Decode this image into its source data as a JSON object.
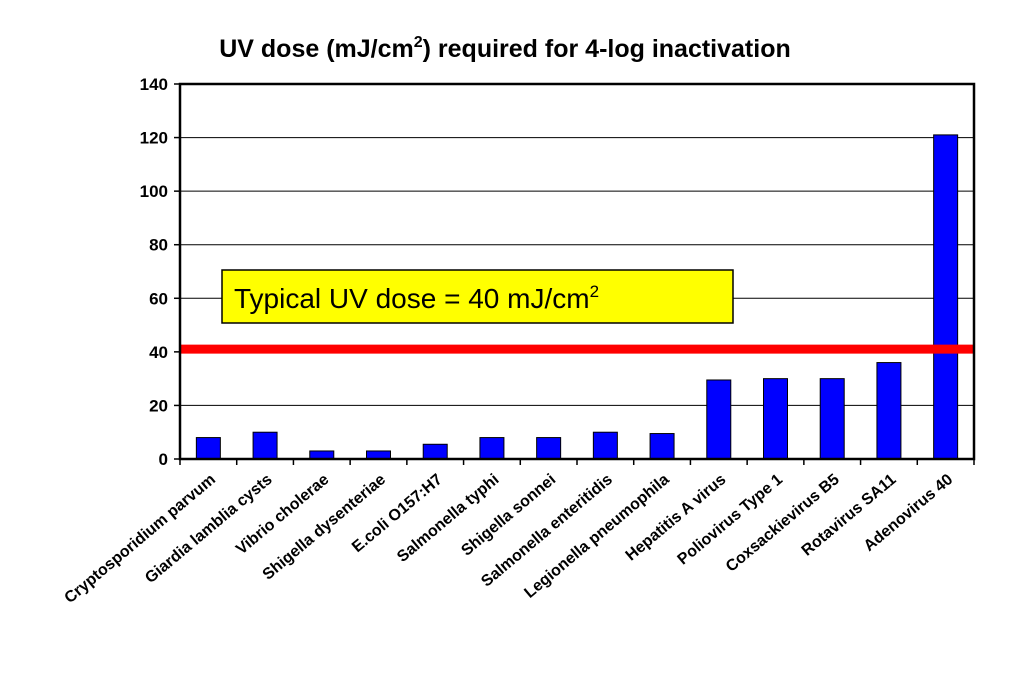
{
  "chart_data": {
    "type": "bar",
    "title": {
      "prefix": "UV dose (mJ/cm",
      "superscript": "2",
      "suffix": ") required for 4-log inactivation"
    },
    "categories": [
      "Cryptosporidium parvum",
      "Giardia lamblia cysts",
      "Vibrio cholerae",
      "Shigella dysenteriae",
      "E.coli O157:H7",
      "Salmonella typhi",
      "Shigella sonnei",
      "Salmonella enteritidis",
      "Legionella pneumophila",
      "Hepatitis A virus",
      "Poliovirus Type 1",
      "Coxsackievirus B5",
      "Rotavirus SA11",
      "Adenovirus 40"
    ],
    "values": [
      8,
      10,
      3,
      3,
      5.5,
      8,
      8,
      10,
      9.5,
      29.5,
      30,
      30,
      36,
      121
    ],
    "ylim": [
      0,
      140
    ],
    "yticks": [
      0,
      20,
      40,
      60,
      80,
      100,
      120,
      140
    ],
    "xlabel": "",
    "ylabel": "",
    "grid": "horizontal",
    "reference_line": {
      "value": 41,
      "color": "#ff0000"
    },
    "annotation": {
      "prefix": "Typical UV dose = 40 mJ/cm",
      "superscript": "2",
      "background": "#ffff00"
    },
    "bar_color": "#0000ff"
  }
}
